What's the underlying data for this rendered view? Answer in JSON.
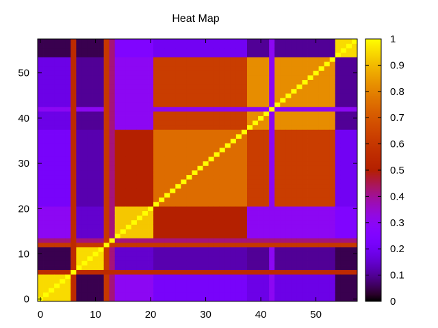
{
  "chart_data": {
    "type": "heatmap",
    "title": "Heat Map",
    "xlabel": "",
    "ylabel": "",
    "xlim": [
      -0.5,
      57.5
    ],
    "ylim": [
      -0.5,
      57.5
    ],
    "x_ticks": [
      0,
      10,
      20,
      30,
      40,
      50
    ],
    "y_ticks": [
      0,
      10,
      20,
      30,
      40,
      50
    ],
    "colorbar": {
      "range": [
        0,
        1
      ],
      "ticks": [
        "0",
        "0.1",
        "0.2",
        "0.3",
        "0.4",
        "0.5",
        "0.6",
        "0.7",
        "0.8",
        "0.9",
        "1"
      ],
      "palette": "gnuplot-pm3d-hot (black-purple-red-orange-yellow)"
    },
    "grid": false,
    "size": 58,
    "diagonal": 1.0,
    "blocks": [
      {
        "range": [
          0,
          5
        ],
        "within": 0.95
      },
      {
        "range": [
          7,
          11
        ],
        "within": 0.95
      },
      {
        "range": [
          14,
          20
        ],
        "within": 0.92
      },
      {
        "range": [
          21,
          37
        ],
        "within": 0.75
      },
      {
        "range": [
          38,
          53
        ],
        "within": 0.82
      },
      {
        "range": [
          54,
          57
        ],
        "within": 0.95
      }
    ],
    "between_blocks": [
      {
        "a": [
          0,
          5
        ],
        "b": [
          7,
          11
        ],
        "value": 0.05
      },
      {
        "a": [
          0,
          5
        ],
        "b": [
          14,
          20
        ],
        "value": 0.3
      },
      {
        "a": [
          0,
          5
        ],
        "b": [
          21,
          37
        ],
        "value": 0.22
      },
      {
        "a": [
          0,
          5
        ],
        "b": [
          38,
          53
        ],
        "value": 0.18
      },
      {
        "a": [
          0,
          5
        ],
        "b": [
          54,
          57
        ],
        "value": 0.05
      },
      {
        "a": [
          7,
          11
        ],
        "b": [
          14,
          20
        ],
        "value": 0.15
      },
      {
        "a": [
          7,
          11
        ],
        "b": [
          21,
          37
        ],
        "value": 0.12
      },
      {
        "a": [
          7,
          11
        ],
        "b": [
          38,
          53
        ],
        "value": 0.1
      },
      {
        "a": [
          7,
          11
        ],
        "b": [
          54,
          57
        ],
        "value": 0.05
      },
      {
        "a": [
          14,
          20
        ],
        "b": [
          21,
          37
        ],
        "value": 0.5
      },
      {
        "a": [
          14,
          20
        ],
        "b": [
          38,
          53
        ],
        "value": 0.3
      },
      {
        "a": [
          14,
          20
        ],
        "b": [
          54,
          57
        ],
        "value": 0.25
      },
      {
        "a": [
          21,
          37
        ],
        "b": [
          38,
          53
        ],
        "value": 0.62
      },
      {
        "a": [
          21,
          37
        ],
        "b": [
          54,
          57
        ],
        "value": 0.2
      },
      {
        "a": [
          38,
          53
        ],
        "b": [
          54,
          57
        ],
        "value": 0.1
      }
    ],
    "special_rows": [
      {
        "index": 6,
        "value": 0.55
      },
      {
        "index": 12,
        "value": 0.6
      },
      {
        "index": 13,
        "value": 0.42
      },
      {
        "index": 42,
        "value": 0.3
      }
    ]
  }
}
